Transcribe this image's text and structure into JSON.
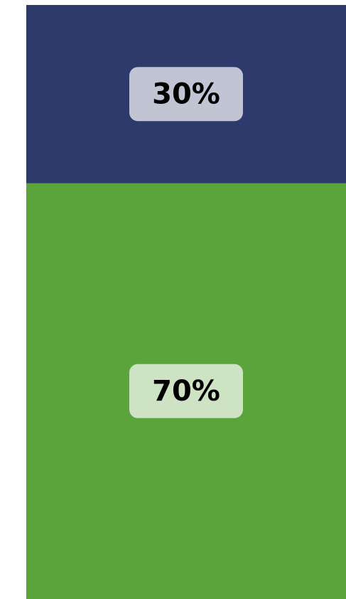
{
  "chart_data": {
    "type": "bar",
    "stacked": true,
    "series": [
      {
        "color": "#2e3a6b",
        "values": [
          30
        ],
        "value_labels": [
          "30%"
        ]
      },
      {
        "color": "#5ba33b",
        "values": [
          70
        ],
        "value_labels": [
          "70%"
        ]
      }
    ]
  }
}
